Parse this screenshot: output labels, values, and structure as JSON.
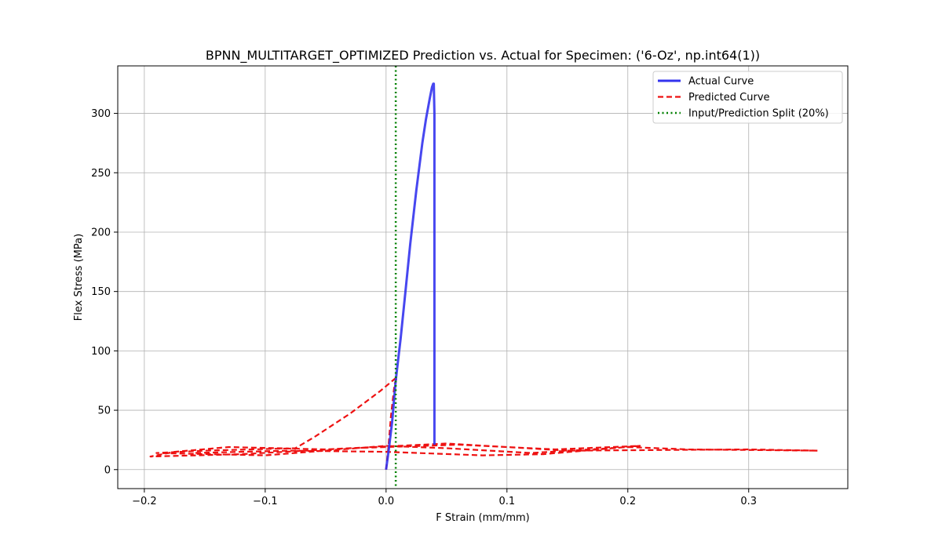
{
  "chart_data": {
    "type": "line",
    "title": "BPNN_MULTITARGET_OPTIMIZED Prediction vs. Actual for Specimen: ('6-Oz', np.int64(1))",
    "xlabel": "F Strain (mm/mm)",
    "ylabel": "Flex Stress (MPa)",
    "xlim": [
      -0.222,
      0.382
    ],
    "ylim": [
      -16,
      340
    ],
    "xticks": [
      -0.2,
      -0.1,
      0.0,
      0.1,
      0.2,
      0.3
    ],
    "xtick_labels": [
      "−0.2",
      "−0.1",
      "0.0",
      "0.1",
      "0.2",
      "0.3"
    ],
    "yticks": [
      0,
      50,
      100,
      150,
      200,
      250,
      300
    ],
    "ytick_labels": [
      "0",
      "50",
      "100",
      "150",
      "200",
      "250",
      "300"
    ],
    "grid": true,
    "legend_position": "top-right",
    "series": [
      {
        "name": "Actual Curve",
        "color": "#3333ee",
        "style": "solid",
        "points": [
          [
            0.0,
            0.0
          ],
          [
            0.002,
            15
          ],
          [
            0.005,
            40
          ],
          [
            0.008,
            75
          ],
          [
            0.012,
            110
          ],
          [
            0.016,
            150
          ],
          [
            0.02,
            190
          ],
          [
            0.025,
            235
          ],
          [
            0.03,
            275
          ],
          [
            0.033,
            295
          ],
          [
            0.036,
            312
          ],
          [
            0.038,
            322
          ],
          [
            0.039,
            325
          ],
          [
            0.0395,
            325
          ],
          [
            0.04,
            300
          ],
          [
            0.04,
            200
          ],
          [
            0.04,
            100
          ],
          [
            0.04,
            21
          ]
        ]
      },
      {
        "name": "Predicted Curve",
        "color": "#ee1111",
        "style": "dashed",
        "points": [
          [
            0.0,
            0.0
          ],
          [
            0.002,
            20
          ],
          [
            0.004,
            45
          ],
          [
            0.007,
            72
          ],
          [
            0.009,
            78
          ],
          [
            -0.005,
            66
          ],
          [
            -0.03,
            47
          ],
          [
            -0.06,
            27
          ],
          [
            -0.075,
            18
          ],
          [
            -0.15,
            16
          ],
          [
            -0.19,
            14
          ],
          [
            -0.1,
            12
          ],
          [
            0.0,
            20
          ],
          [
            0.05,
            18
          ],
          [
            0.12,
            14
          ],
          [
            0.2,
            19
          ],
          [
            0.25,
            17
          ],
          [
            0.357,
            16
          ],
          [
            0.3,
            17
          ],
          [
            0.15,
            16
          ],
          [
            0.05,
            22
          ],
          [
            -0.05,
            17
          ],
          [
            -0.13,
            19
          ],
          [
            -0.175,
            15
          ],
          [
            -0.195,
            11
          ],
          [
            -0.12,
            13
          ],
          [
            -0.03,
            18
          ],
          [
            0.06,
            21
          ],
          [
            0.14,
            17
          ],
          [
            0.21,
            20
          ],
          [
            0.13,
            13
          ],
          [
            0.08,
            12
          ],
          [
            0.0,
            15
          ],
          [
            -0.08,
            16
          ],
          [
            -0.16,
            14
          ]
        ]
      },
      {
        "name": "Input/Prediction Split (20%)",
        "color": "#008000",
        "style": "dotted",
        "vline_x": 0.008
      }
    ]
  }
}
